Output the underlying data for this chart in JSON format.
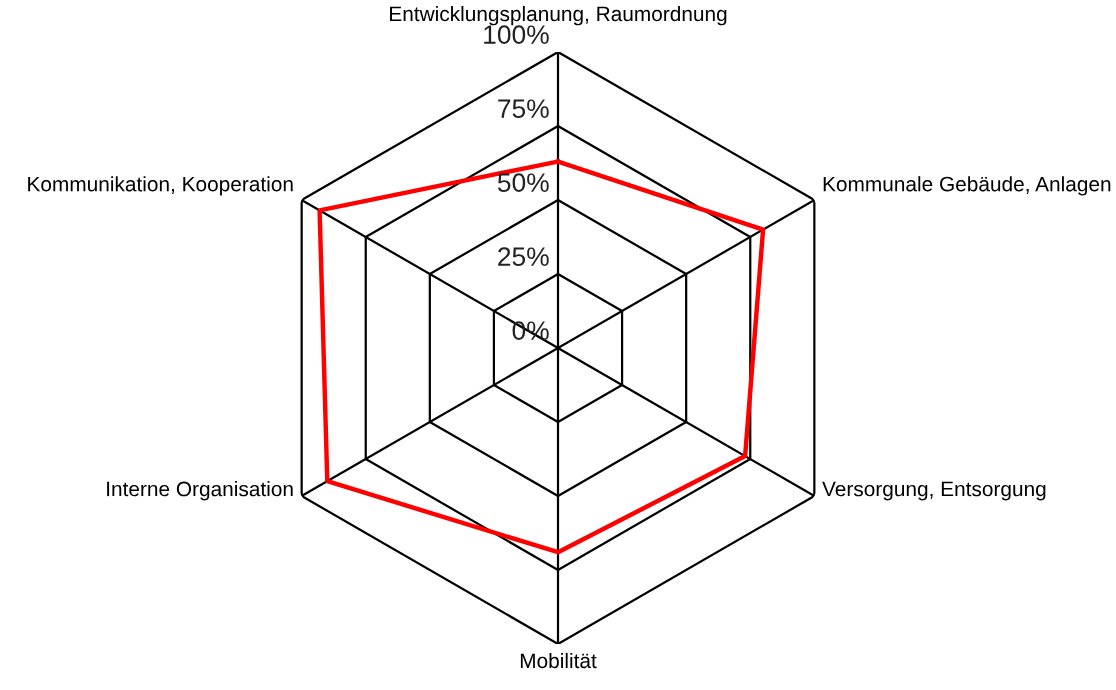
{
  "chart_data": {
    "type": "radar",
    "categories": [
      "Entwicklungsplanung, Raumordnung",
      "Kommunale Gebäude, Anlagen",
      "Versorgung, Entsorgung",
      "Mobilität",
      "Interne Organisation",
      "Kommunikation, Kooperation"
    ],
    "series": [
      {
        "color": "#ff0000",
        "values": [
          63,
          80,
          73,
          69,
          90,
          93
        ]
      }
    ],
    "ylim": [
      0,
      100
    ],
    "yticks": [
      {
        "value": 0,
        "label": "0%"
      },
      {
        "value": 25,
        "label": "25%"
      },
      {
        "value": 50,
        "label": "50%"
      },
      {
        "value": 75,
        "label": "75%"
      },
      {
        "value": 100,
        "label": "100%"
      }
    ],
    "grid": true,
    "marker": "none",
    "line_style": "solid"
  }
}
